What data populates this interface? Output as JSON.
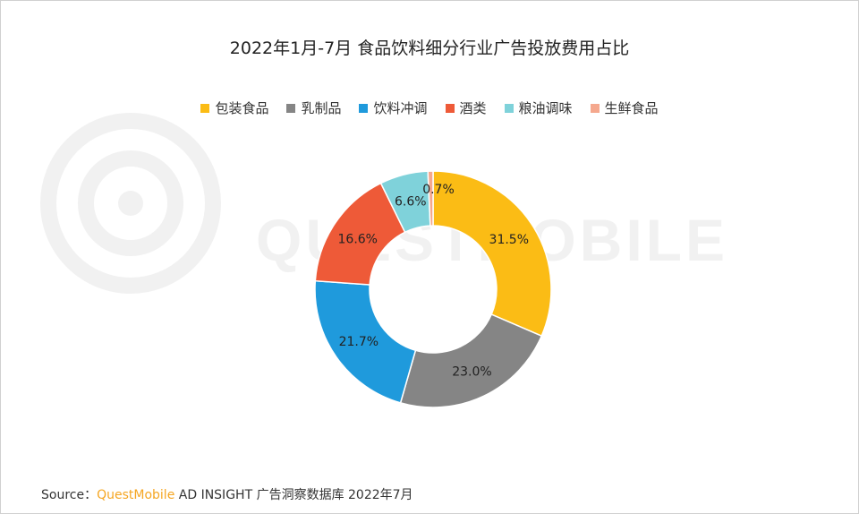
{
  "header": {
    "title": "2022年1月-7月 食品饮料细分行业广告投放费用占比"
  },
  "watermark": {
    "text": "QUESTMOBILE"
  },
  "chart_data": {
    "type": "pie",
    "donut": true,
    "title": "2022年1月-7月 食品饮料细分行业广告投放费用占比",
    "legend_position": "top",
    "slices": [
      {
        "label": "包装食品",
        "value": 31.5,
        "display": "31.5%",
        "color": "#FBBC15"
      },
      {
        "label": "乳制品",
        "value": 23.0,
        "display": "23.0%",
        "color": "#858585"
      },
      {
        "label": "饮料冲调",
        "value": 21.7,
        "display": "21.7%",
        "color": "#1F9ADC"
      },
      {
        "label": "酒类",
        "value": 16.6,
        "display": "16.6%",
        "color": "#EE5A38"
      },
      {
        "label": "粮油调味",
        "value": 6.6,
        "display": "6.6%",
        "color": "#7FD2DA"
      },
      {
        "label": "生鲜食品",
        "value": 0.7,
        "display": "0.7%",
        "color": "#F5A88E"
      }
    ]
  },
  "footer": {
    "source_label": "Source：",
    "brand": "QuestMobile",
    "source_text": " AD INSIGHT 广告洞察数据库 2022年7月"
  }
}
